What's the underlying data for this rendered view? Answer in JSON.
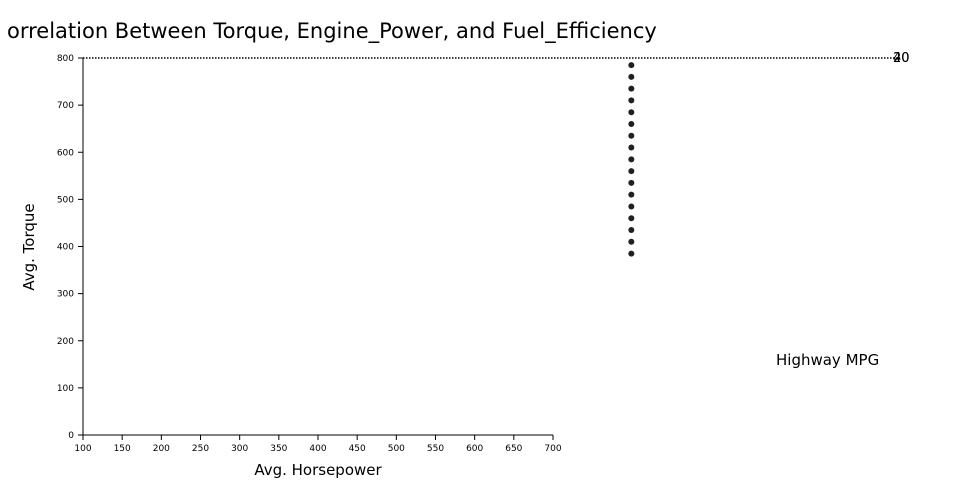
{
  "chart_data": {
    "type": "scatter",
    "title": "orrelation Between Torque, Engine_Power, and Fuel_Efficiency",
    "xlabel": "Avg. Horsepower",
    "ylabel": "Avg. Torque",
    "xlim": [
      100,
      700
    ],
    "ylim": [
      0,
      800
    ],
    "x_ticks": [
      "100",
      "150",
      "200",
      "250",
      "300",
      "350",
      "400",
      "450",
      "500",
      "550",
      "600",
      "650",
      "700"
    ],
    "y_ticks": [
      "0",
      "100",
      "200",
      "300",
      "400",
      "500",
      "600",
      "700",
      "800"
    ],
    "grid": false,
    "legend": {
      "title": "Highway MPG",
      "placement": "right",
      "tick_labels": [
        "20",
        "40"
      ]
    },
    "color": "#221f20",
    "points": [
      {
        "x": 800,
        "y": 785
      },
      {
        "x": 800,
        "y": 760
      },
      {
        "x": 800,
        "y": 735
      },
      {
        "x": 800,
        "y": 710
      },
      {
        "x": 800,
        "y": 685
      },
      {
        "x": 800,
        "y": 660
      },
      {
        "x": 800,
        "y": 635
      },
      {
        "x": 800,
        "y": 610
      },
      {
        "x": 800,
        "y": 585
      },
      {
        "x": 800,
        "y": 560
      },
      {
        "x": 800,
        "y": 535
      },
      {
        "x": 800,
        "y": 510
      },
      {
        "x": 800,
        "y": 485
      },
      {
        "x": 800,
        "y": 460
      },
      {
        "x": 800,
        "y": 435
      },
      {
        "x": 800,
        "y": 410
      },
      {
        "x": 800,
        "y": 385
      }
    ]
  }
}
